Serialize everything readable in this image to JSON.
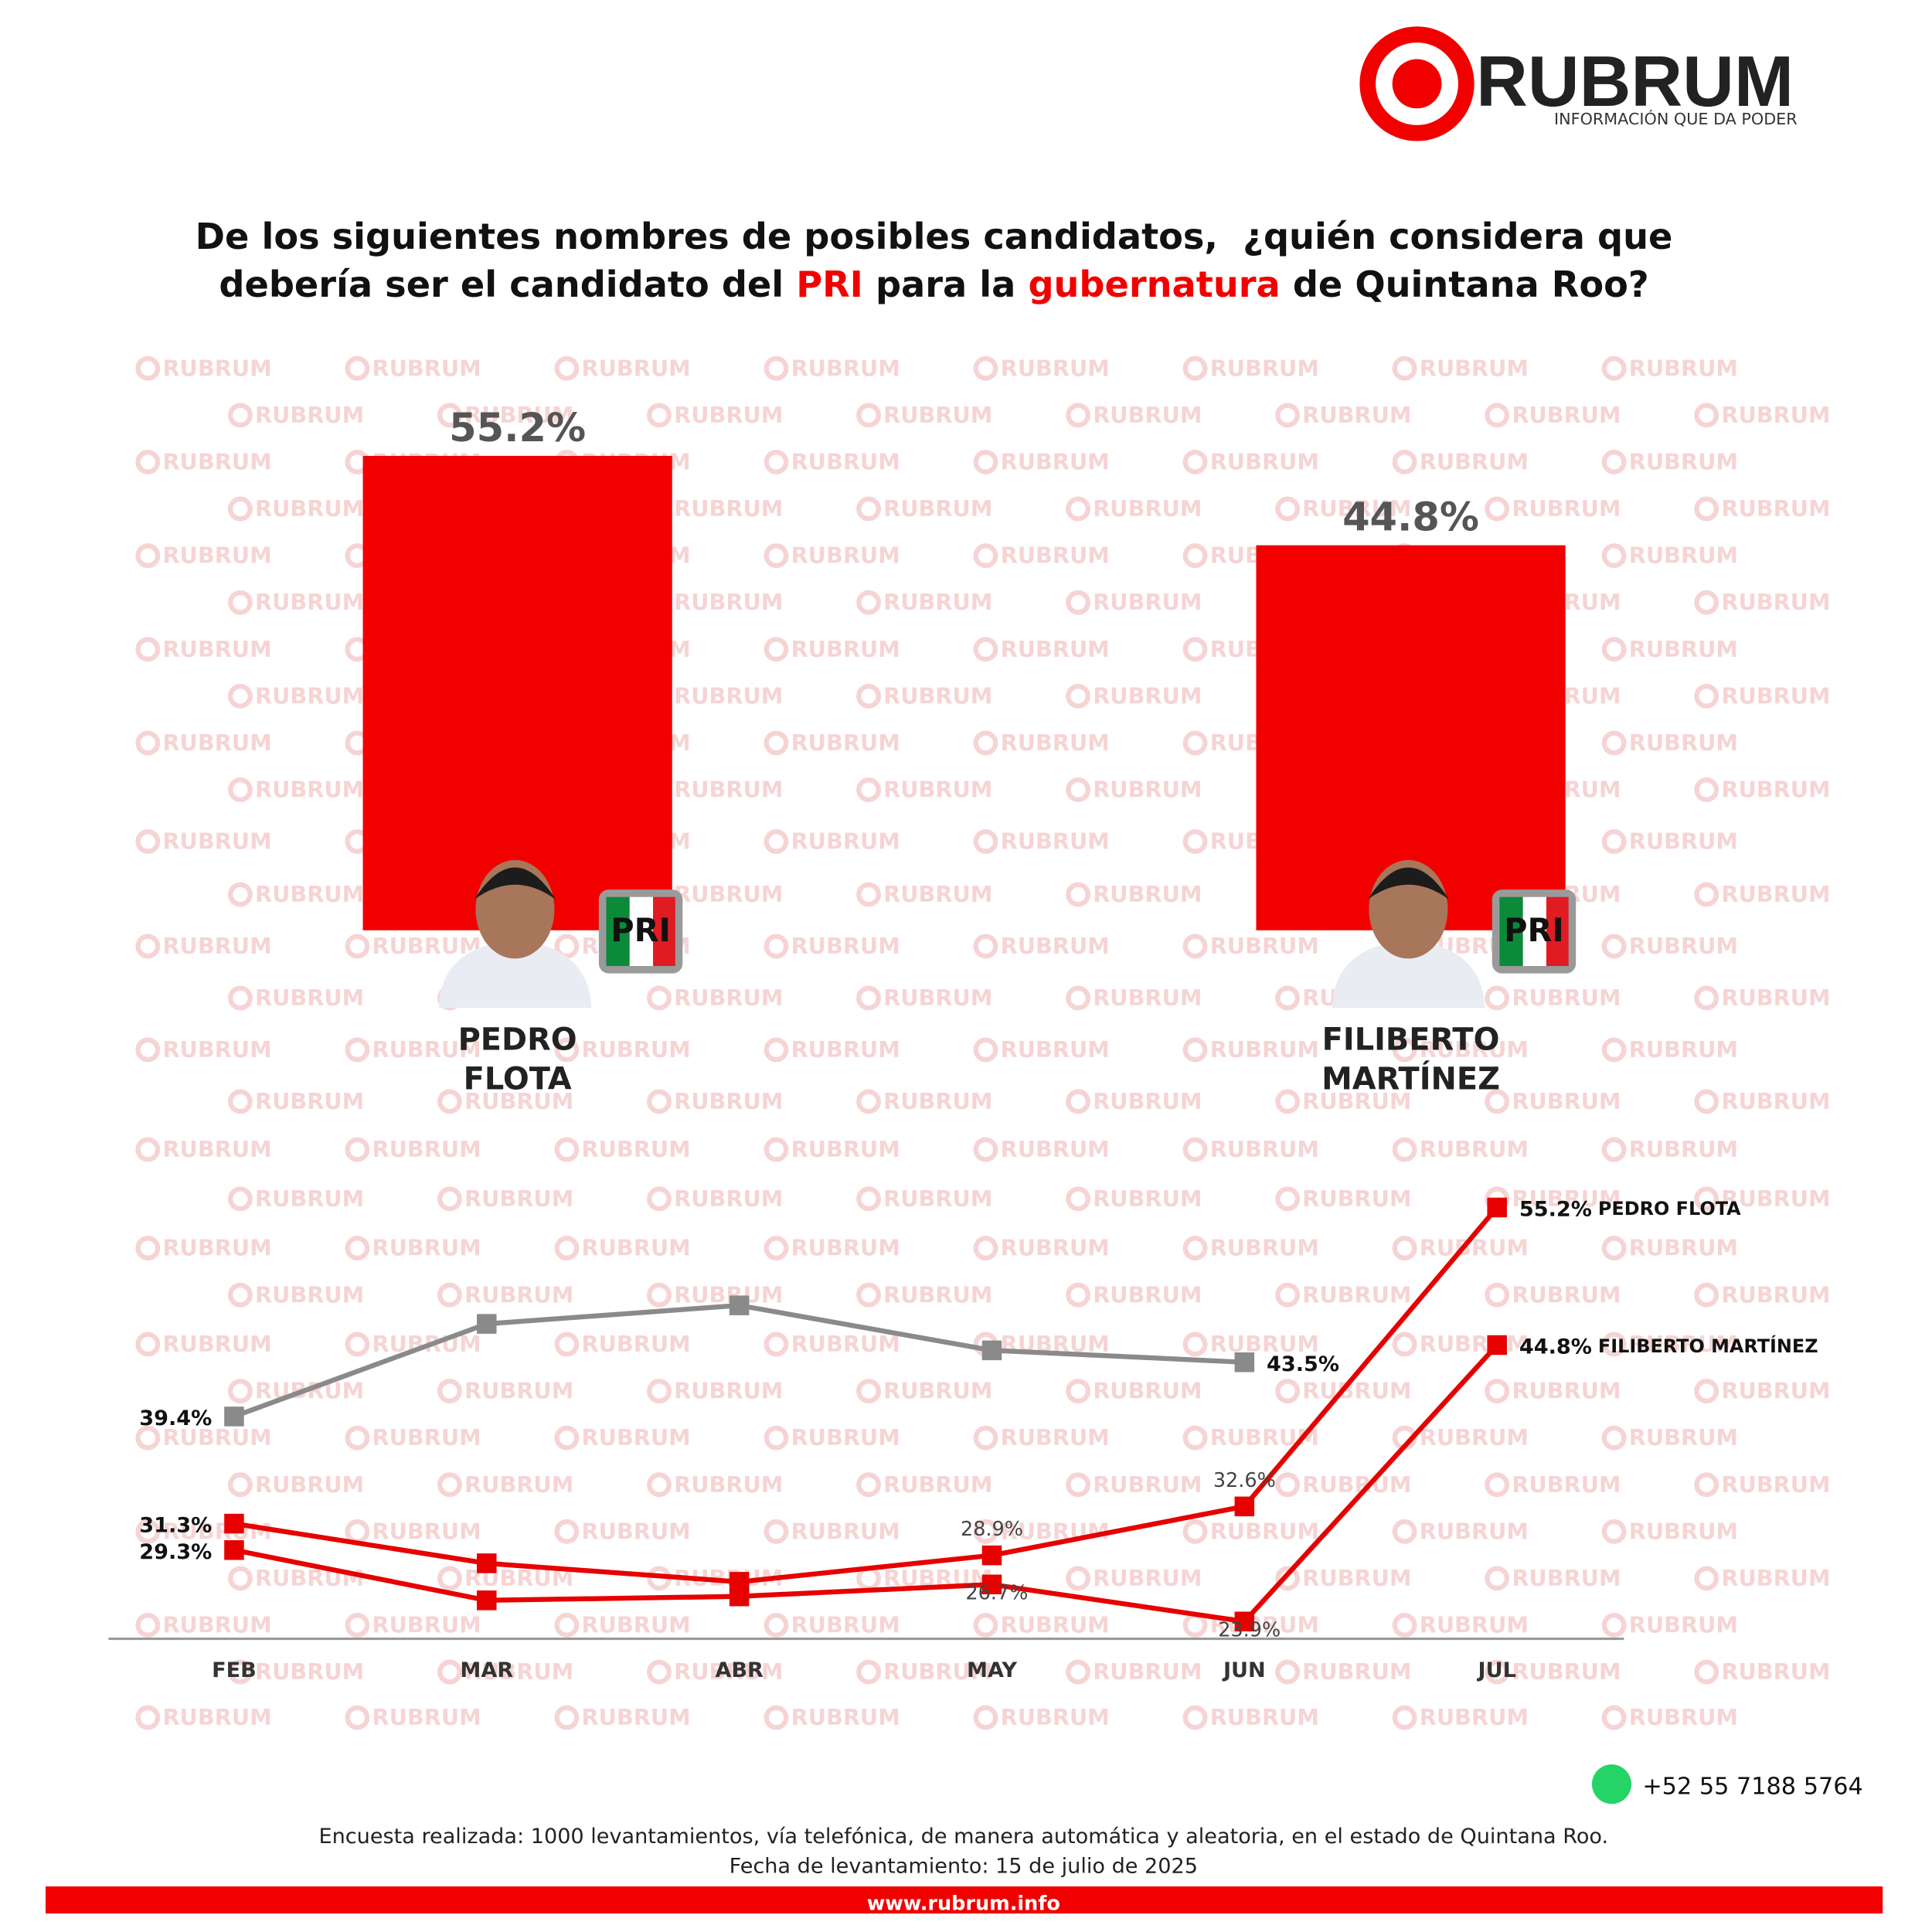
{
  "header": {
    "brand": "RUBRUM",
    "tagline": "INFORMACIÓN QUE DA PODER"
  },
  "question": [
    [
      "De los siguientes nombres de posibles candidatos,  ¿quién considera que"
    ],
    [
      "debería ser el candidato del ",
      "PRI",
      " para la ",
      "gubernatura",
      " de Quintana Roo?"
    ]
  ],
  "party": "PRI",
  "chart_data": [
    {
      "type": "bar",
      "categories": [
        "PEDRO FLOTA",
        "FILIBERTO MARTÍNEZ"
      ],
      "values": [
        55.2,
        44.8
      ],
      "value_labels": [
        "55.2%",
        "44.8%"
      ],
      "color": "#f20000"
    },
    {
      "type": "line",
      "categories": [
        "FEB",
        "MAR",
        "ABR",
        "MAY",
        "JUN",
        "JUL"
      ],
      "series": [
        {
          "color": "#8a8a8a",
          "values": [
            39.4,
            46.4,
            47.8,
            44.4,
            43.5,
            null
          ],
          "value_labels": [
            "39.4%",
            null,
            null,
            null,
            "43.5%",
            null
          ]
        },
        {
          "name": "PEDRO FLOTA",
          "color": "#e60000",
          "values": [
            31.3,
            28.3,
            26.9,
            28.9,
            32.6,
            55.2
          ],
          "value_labels": [
            "31.3%",
            null,
            null,
            "28.9%",
            "32.6%",
            "55.2%"
          ]
        },
        {
          "name": "FILIBERTO MARTÍNEZ",
          "color": "#e60000",
          "values": [
            29.3,
            25.5,
            25.8,
            26.7,
            23.9,
            44.8
          ],
          "value_labels": [
            "29.3%",
            null,
            null,
            "26.7%",
            "23.9%",
            "44.8%"
          ]
        }
      ]
    }
  ],
  "footer": {
    "phone": "+52 55 7188 5764",
    "notes": [
      "Encuesta realizada: 1000 levantamientos, vía telefónica, de manera automática y aleatoria, en el estado de Quintana Roo.",
      "Fecha de levantamiento: 15 de julio de 2025"
    ],
    "website": "www.rubrum.info"
  }
}
